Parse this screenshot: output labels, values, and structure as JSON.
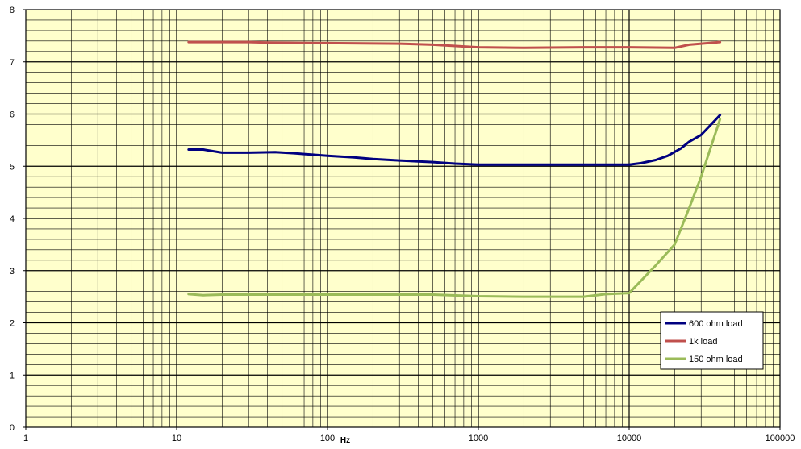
{
  "chart_data": {
    "type": "line",
    "title": "",
    "xlabel": "Hz",
    "ylabel": "",
    "x_scale": "log",
    "xlim": [
      1,
      100000
    ],
    "ylim": [
      0,
      8
    ],
    "grid": true,
    "legend_position": "bottom-right",
    "plot_background": "#ffffcc",
    "x_ticks": [
      {
        "value": 1,
        "label": "1"
      },
      {
        "value": 10,
        "label": "10"
      },
      {
        "value": 100,
        "label": "100"
      },
      {
        "value": 1000,
        "label": "1000"
      },
      {
        "value": 10000,
        "label": "10000"
      },
      {
        "value": 100000,
        "label": "100000"
      }
    ],
    "y_ticks": [
      {
        "value": 0,
        "label": "0"
      },
      {
        "value": 1,
        "label": "1"
      },
      {
        "value": 2,
        "label": "2"
      },
      {
        "value": 3,
        "label": "3"
      },
      {
        "value": 4,
        "label": "4"
      },
      {
        "value": 5,
        "label": "5"
      },
      {
        "value": 6,
        "label": "6"
      },
      {
        "value": 7,
        "label": "7"
      },
      {
        "value": 8,
        "label": "8"
      }
    ],
    "series": [
      {
        "name": "600 ohm load",
        "color": "#000080",
        "x": [
          12,
          15,
          20,
          30,
          45,
          60,
          100,
          150,
          200,
          300,
          500,
          700,
          1000,
          2000,
          5000,
          10000,
          12000,
          15000,
          18000,
          22000,
          25000,
          30000,
          40000
        ],
        "y": [
          5.32,
          5.32,
          5.26,
          5.26,
          5.27,
          5.25,
          5.2,
          5.17,
          5.14,
          5.11,
          5.08,
          5.05,
          5.03,
          5.03,
          5.03,
          5.03,
          5.06,
          5.12,
          5.2,
          5.34,
          5.47,
          5.6,
          5.98
        ]
      },
      {
        "name": "1k load",
        "color": "#c0504d",
        "x": [
          12,
          20,
          30,
          40,
          100,
          300,
          500,
          1000,
          2000,
          5000,
          10000,
          20000,
          25000,
          40000
        ],
        "y": [
          7.38,
          7.38,
          7.38,
          7.37,
          7.36,
          7.35,
          7.33,
          7.28,
          7.27,
          7.28,
          7.28,
          7.27,
          7.33,
          7.38
        ]
      },
      {
        "name": "150 ohm load",
        "color": "#9bbb59",
        "x": [
          12,
          15,
          20,
          50,
          100,
          500,
          1000,
          2000,
          5000,
          7000,
          10000,
          15000,
          20000,
          25000,
          30000,
          40000
        ],
        "y": [
          2.55,
          2.53,
          2.54,
          2.54,
          2.54,
          2.54,
          2.51,
          2.5,
          2.5,
          2.55,
          2.57,
          3.1,
          3.5,
          4.2,
          4.8,
          5.9
        ]
      }
    ]
  }
}
